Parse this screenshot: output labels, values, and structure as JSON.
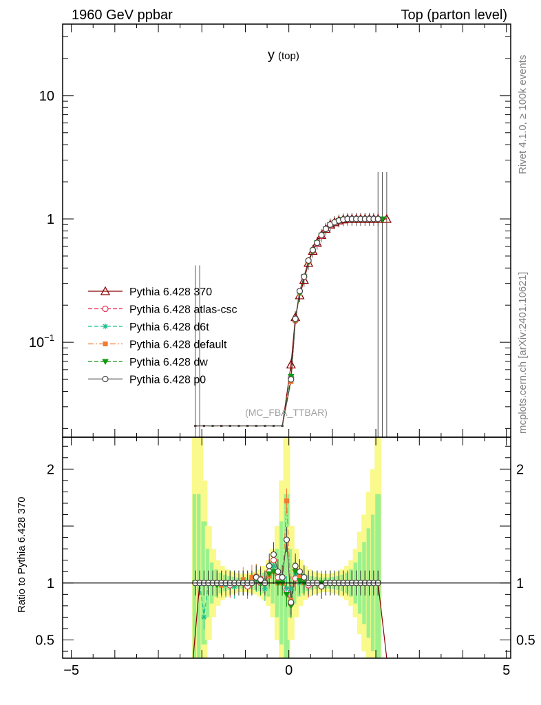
{
  "header": {
    "left": "1960 GeV ppbar",
    "right": "Top (parton level)"
  },
  "side_labels": {
    "rivet": "Rivet 4.1.0, ≥ 100k events",
    "mcplots": "mcplots.cern.ch [arXiv:2401.10621]"
  },
  "chart_data": [
    {
      "type": "line",
      "panel": "main",
      "title": "y",
      "title_suffix": "(top)",
      "annotation": "(MC_FBA_TTBAR)",
      "yscale": "log",
      "xlim": [
        -5.2,
        5.1
      ],
      "ylim": [
        0.017,
        38
      ],
      "y_ticks": [
        {
          "value": 0.1,
          "base": "10",
          "exp": "−1"
        },
        {
          "value": 1,
          "label": "1"
        },
        {
          "value": 10,
          "label": "10"
        }
      ],
      "x": [
        -2.15,
        -1.95,
        -1.75,
        -1.55,
        -1.35,
        -1.15,
        -0.95,
        -0.75,
        -0.55,
        -0.35,
        -0.15,
        0.05,
        0.15,
        0.25,
        0.35,
        0.45,
        0.55,
        0.65,
        0.75,
        0.85,
        0.95,
        1.05,
        1.15,
        1.25,
        1.35,
        1.45,
        1.55,
        1.65,
        1.75,
        1.85,
        1.95,
        2.05
      ],
      "series": [
        {
          "name": "Pythia 6.428 370",
          "color": "#8b0000",
          "dash": "",
          "marker": "triangle",
          "values": [
            0.021,
            0.021,
            0.021,
            0.021,
            0.021,
            0.021,
            0.021,
            0.021,
            0.021,
            0.021,
            0.021,
            0.066,
            0.16,
            0.24,
            0.32,
            0.44,
            0.55,
            0.64,
            0.74,
            0.83,
            0.9,
            0.94,
            0.97,
            0.99,
            1.0,
            1.0,
            1.0,
            1.0,
            1.0,
            1.0,
            1.0,
            1.0
          ],
          "extra_point": {
            "x": 2.25,
            "y": 1.0
          }
        },
        {
          "name": "Pythia 6.428 atlas-csc",
          "color": "#e8305a",
          "dash": "6,3",
          "marker": "circle-open",
          "values": [
            0.021,
            0.021,
            0.021,
            0.021,
            0.021,
            0.021,
            0.021,
            0.021,
            0.021,
            0.021,
            0.021,
            0.052,
            0.15,
            0.26,
            0.34,
            0.45,
            0.55,
            0.63,
            0.73,
            0.83,
            0.89,
            0.94,
            0.97,
            0.99,
            1.0,
            1.0,
            1.0,
            1.0,
            1.0,
            1.0,
            1.0,
            1.0
          ]
        },
        {
          "name": "Pythia 6.428 d6t",
          "color": "#1dbf8e",
          "dash": "6,3",
          "marker": "star",
          "values": [
            0.021,
            0.021,
            0.021,
            0.021,
            0.021,
            0.021,
            0.021,
            0.021,
            0.021,
            0.021,
            0.021,
            0.053,
            0.15,
            0.25,
            0.34,
            0.45,
            0.55,
            0.64,
            0.74,
            0.83,
            0.9,
            0.94,
            0.97,
            0.99,
            1.0,
            1.0,
            1.0,
            1.0,
            1.0,
            1.0,
            1.0,
            1.0
          ]
        },
        {
          "name": "Pythia 6.428 default",
          "color": "#f07c30",
          "dash": "8,3,2,3",
          "marker": "square",
          "values": [
            0.021,
            0.021,
            0.021,
            0.021,
            0.021,
            0.021,
            0.021,
            0.021,
            0.021,
            0.021,
            0.021,
            0.048,
            0.15,
            0.25,
            0.34,
            0.45,
            0.55,
            0.64,
            0.74,
            0.83,
            0.9,
            0.94,
            0.97,
            0.99,
            1.0,
            1.0,
            1.0,
            1.0,
            1.0,
            1.0,
            1.0,
            1.0
          ]
        },
        {
          "name": "Pythia 6.428 dw",
          "color": "#119911",
          "dash": "6,3",
          "marker": "triangle-down",
          "values": [
            0.021,
            0.021,
            0.021,
            0.021,
            0.021,
            0.021,
            0.021,
            0.021,
            0.021,
            0.021,
            0.021,
            0.053,
            0.15,
            0.25,
            0.34,
            0.45,
            0.55,
            0.64,
            0.74,
            0.83,
            0.9,
            0.94,
            0.97,
            0.99,
            1.0,
            1.0,
            1.0,
            1.0,
            1.0,
            1.0,
            1.0,
            1.0
          ],
          "extra_point": {
            "x": 2.15,
            "y": 1.0
          }
        },
        {
          "name": "Pythia 6.428 p0",
          "color": "#444444",
          "dash": "",
          "marker": "circle-open",
          "values": [
            0.021,
            0.021,
            0.021,
            0.021,
            0.021,
            0.021,
            0.021,
            0.021,
            0.021,
            0.021,
            0.021,
            0.05,
            0.155,
            0.26,
            0.34,
            0.46,
            0.56,
            0.64,
            0.74,
            0.83,
            0.9,
            0.94,
            0.97,
            0.99,
            1.0,
            1.0,
            1.0,
            1.0,
            1.0,
            1.0,
            1.0,
            1.0
          ]
        }
      ],
      "error_bars": [
        {
          "x": -2.15,
          "lo": 0.017,
          "hi": 0.42
        },
        {
          "x": -2.05,
          "lo": 0.017,
          "hi": 0.42
        },
        {
          "x": 2.05,
          "lo": 0.017,
          "hi": 2.4
        },
        {
          "x": 2.15,
          "lo": 0.017,
          "hi": 2.4
        },
        {
          "x": 2.25,
          "lo": 0.017,
          "hi": 2.4
        }
      ],
      "legend_position": "middle-left"
    },
    {
      "type": "line",
      "panel": "ratio",
      "ylabel": "Ratio to Pythia 6.428 370",
      "xlim": [
        -5.2,
        5.1
      ],
      "ylim": [
        0.34,
        2.28
      ],
      "x_ticks": [
        {
          "value": -5,
          "label": "−5"
        },
        {
          "value": 0,
          "label": "0"
        },
        {
          "value": 5,
          "label": "5"
        }
      ],
      "y_ticks": [
        {
          "value": 0.5,
          "label": "0.5"
        },
        {
          "value": 1,
          "label": "1"
        },
        {
          "value": 2,
          "label": "2"
        }
      ],
      "reference": 1,
      "x": [
        -2.15,
        -2.05,
        -1.95,
        -1.85,
        -1.75,
        -1.65,
        -1.55,
        -1.45,
        -1.35,
        -1.25,
        -1.15,
        -1.05,
        -0.95,
        -0.85,
        -0.75,
        -0.65,
        -0.55,
        -0.45,
        -0.35,
        -0.25,
        -0.15,
        -0.05,
        0.05,
        0.15,
        0.25,
        0.35,
        0.45,
        0.55,
        0.65,
        0.75,
        0.85,
        0.95,
        1.05,
        1.15,
        1.25,
        1.35,
        1.45,
        1.55,
        1.65,
        1.75,
        1.85,
        1.95,
        2.05
      ],
      "band_width": [
        1.3,
        1.3,
        0.9,
        0.5,
        0.3,
        0.2,
        0.15,
        0.12,
        0.1,
        0.09,
        0.08,
        0.08,
        0.08,
        0.09,
        0.1,
        0.12,
        0.15,
        0.2,
        0.3,
        0.5,
        0.9,
        1.3,
        0.5,
        0.3,
        0.2,
        0.15,
        0.12,
        0.1,
        0.09,
        0.08,
        0.08,
        0.08,
        0.09,
        0.1,
        0.12,
        0.15,
        0.2,
        0.3,
        0.45,
        0.6,
        0.8,
        1.0,
        1.3
      ],
      "series": [
        {
          "name": "Pythia 6.428 atlas-csc",
          "values": [
            1.0,
            1.0,
            1.0,
            1.0,
            1.0,
            1.0,
            1.0,
            1.0,
            0.98,
            1.0,
            1.0,
            1.0,
            0.97,
            1.0,
            1.04,
            1.0,
            1.0,
            1.1,
            1.2,
            1.05,
            1.05,
            0.94,
            0.82,
            1.04,
            1.1,
            1.02,
            0.98,
            1.0,
            1.0,
            0.97,
            1.0,
            1.0,
            1.0,
            1.0,
            1.0,
            1.0,
            1.0,
            1.0,
            1.0,
            1.0,
            1.0,
            1.0,
            1.0
          ]
        },
        {
          "name": "Pythia 6.428 d6t",
          "values": [
            1.0,
            1.0,
            0.7,
            1.0,
            1.0,
            1.0,
            1.0,
            0.98,
            1.0,
            0.97,
            1.0,
            1.0,
            1.0,
            1.0,
            1.03,
            1.04,
            0.95,
            1.07,
            1.15,
            1.0,
            1.0,
            0.95,
            0.95,
            1.08,
            1.0,
            1.03,
            1.0,
            1.0,
            1.0,
            0.97,
            1.0,
            1.0,
            1.0,
            1.0,
            1.0,
            1.0,
            1.0,
            1.0,
            1.0,
            1.0,
            1.0,
            1.0,
            1.0
          ]
        },
        {
          "name": "Pythia 6.428 default",
          "values": [
            1.0,
            1.0,
            1.0,
            1.0,
            1.0,
            1.0,
            0.98,
            1.0,
            1.0,
            1.0,
            1.0,
            1.03,
            1.0,
            1.05,
            1.06,
            1.04,
            1.0,
            1.06,
            1.1,
            1.0,
            1.0,
            1.72,
            0.85,
            1.12,
            1.05,
            1.0,
            1.0,
            1.0,
            1.0,
            0.97,
            1.0,
            1.0,
            1.0,
            1.0,
            1.0,
            1.0,
            1.0,
            1.0,
            1.0,
            1.0,
            1.0,
            1.0,
            1.0
          ]
        },
        {
          "name": "Pythia 6.428 dw",
          "values": [
            1.0,
            1.0,
            1.0,
            1.0,
            1.0,
            0.98,
            1.0,
            1.0,
            1.0,
            1.0,
            1.0,
            1.0,
            1.0,
            1.0,
            1.04,
            1.0,
            1.0,
            1.08,
            1.1,
            1.0,
            1.0,
            0.9,
            0.8,
            1.1,
            1.02,
            1.0,
            1.0,
            1.0,
            1.0,
            1.0,
            1.0,
            1.0,
            1.0,
            1.0,
            1.0,
            1.0,
            1.0,
            1.0,
            1.0,
            1.0,
            1.0,
            1.0,
            1.0
          ]
        },
        {
          "name": "Pythia 6.428 p0",
          "values": [
            1.0,
            1.0,
            1.0,
            1.0,
            1.0,
            1.0,
            1.0,
            1.0,
            1.0,
            1.0,
            1.0,
            1.0,
            1.0,
            1.0,
            1.05,
            1.03,
            1.0,
            1.15,
            1.25,
            1.1,
            1.05,
            1.38,
            0.83,
            1.15,
            1.1,
            1.05,
            1.0,
            1.0,
            1.0,
            0.97,
            1.0,
            1.0,
            1.0,
            1.0,
            1.0,
            1.0,
            1.0,
            1.0,
            1.0,
            1.0,
            1.0,
            1.0,
            1.0
          ]
        }
      ]
    }
  ]
}
